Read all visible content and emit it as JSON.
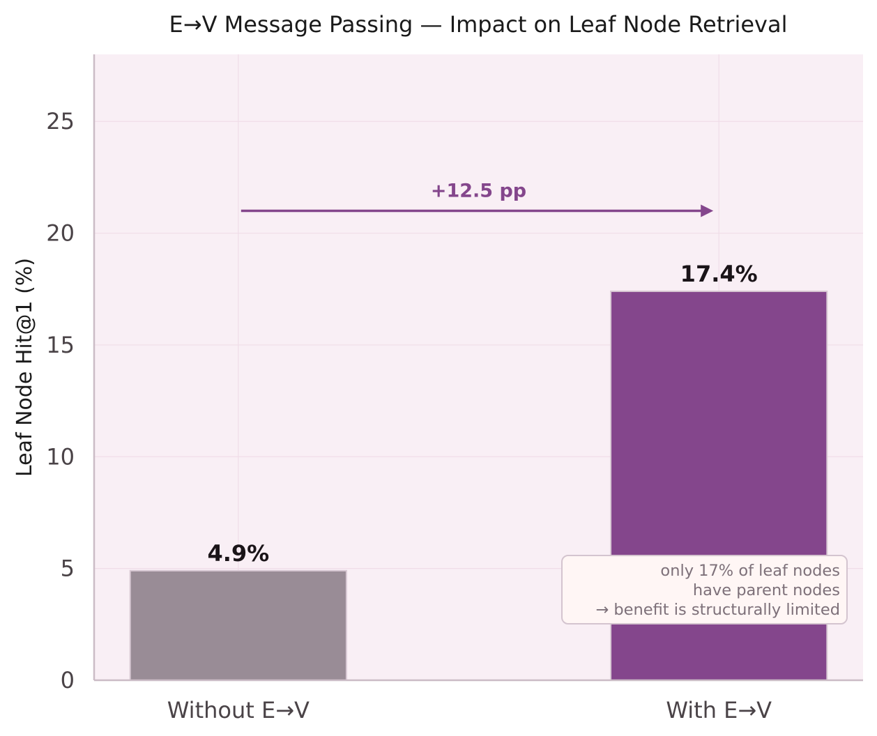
{
  "chart_data": {
    "type": "bar",
    "title": "E→V Message Passing — Impact on Leaf Node Retrieval",
    "xlabel": "",
    "ylabel": "Leaf Node Hit@1 (%)",
    "categories": [
      "Without E→V",
      "With E→V"
    ],
    "values": [
      4.9,
      17.4
    ],
    "data_labels": [
      "4.9%",
      "17.4%"
    ],
    "bar_colors": [
      "#998c96",
      "#84468c"
    ],
    "ylim": [
      0,
      28
    ],
    "yticks": [
      0,
      5,
      10,
      15,
      20,
      25
    ],
    "grid": true,
    "plot_background": "#f9eff5",
    "annotation": {
      "text": "+12.5 pp",
      "from_category": 0,
      "to_category": 1,
      "y": 21,
      "color": "#84468c"
    },
    "note_lines": [
      "only 17% of leaf nodes",
      "have parent nodes",
      "→ benefit is structurally limited"
    ]
  }
}
